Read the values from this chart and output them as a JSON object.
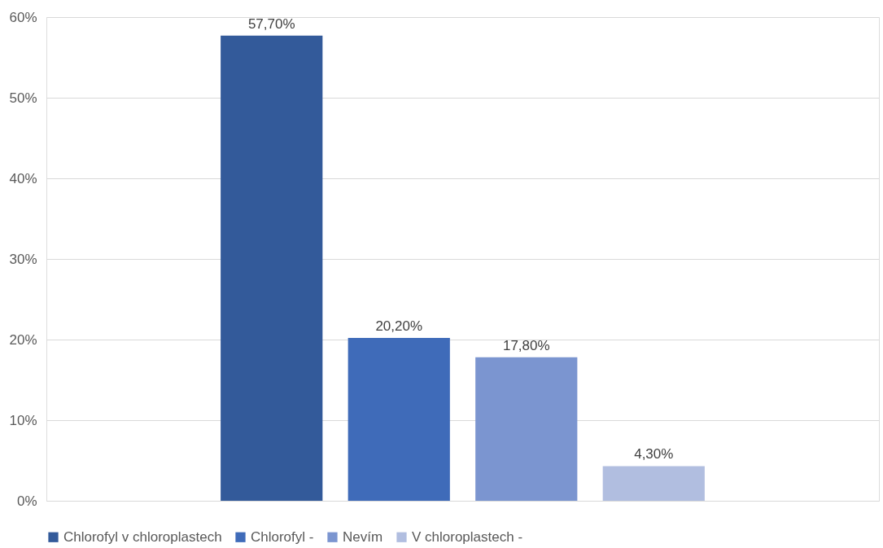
{
  "chart_data": {
    "type": "bar",
    "categories": [
      null
    ],
    "series": [
      {
        "name": "Chlorofyl v chloroplastech",
        "color": "#335a9a",
        "values": [
          57.7
        ],
        "value_labels": [
          "57,70%"
        ]
      },
      {
        "name": "Chlorofyl -",
        "color": "#3f6bb9",
        "values": [
          20.2
        ],
        "value_labels": [
          "20,20%"
        ]
      },
      {
        "name": "Nevím",
        "color": "#7b95d0",
        "values": [
          17.8
        ],
        "value_labels": [
          "17,80%"
        ]
      },
      {
        "name": "V chloroplastech -",
        "color": "#b1bee0",
        "values": [
          4.3
        ],
        "value_labels": [
          "4,30%"
        ]
      }
    ],
    "ylim": [
      0,
      60
    ],
    "yticks": [
      {
        "value": 0,
        "label": "0%"
      },
      {
        "value": 10,
        "label": "10%"
      },
      {
        "value": 20,
        "label": "20%"
      },
      {
        "value": 30,
        "label": "30%"
      },
      {
        "value": 40,
        "label": "40%"
      },
      {
        "value": 50,
        "label": "50%"
      },
      {
        "value": 60,
        "label": "60%"
      }
    ],
    "grid": "y",
    "legend": "bottom"
  }
}
